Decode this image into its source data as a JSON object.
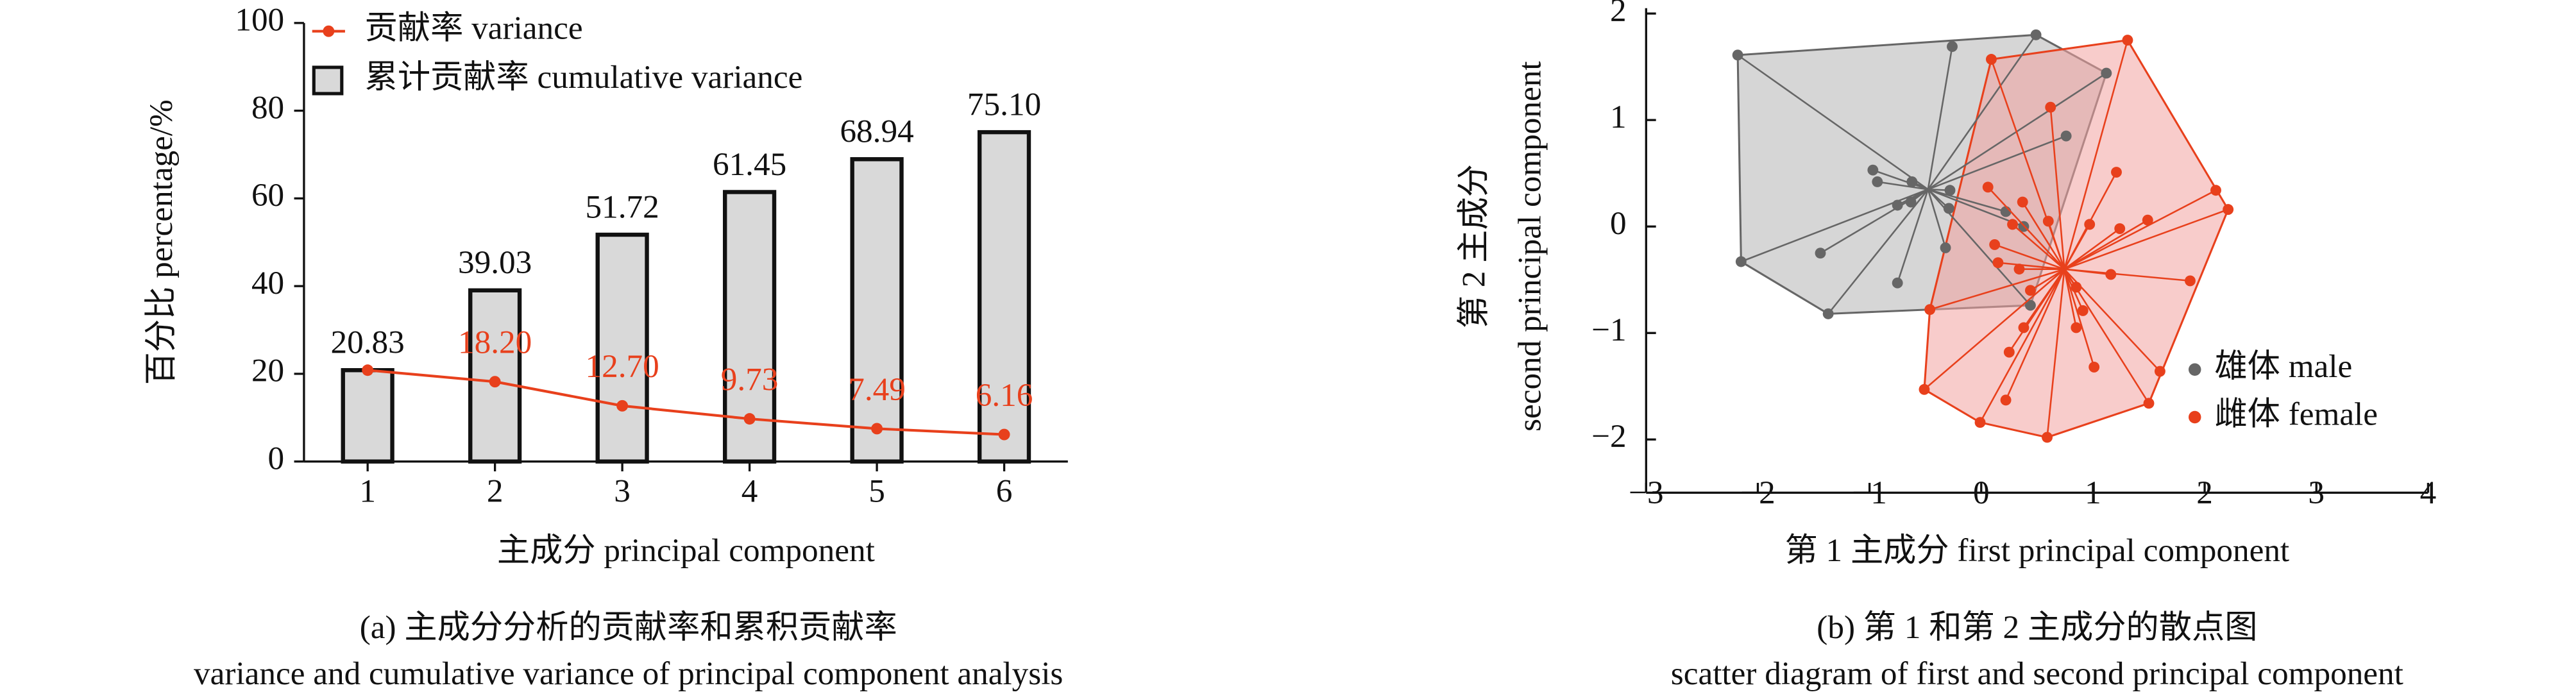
{
  "chart_data": [
    {
      "type": "bar",
      "title": "(a) 主成分分析的贡献率和累积贡献率",
      "subtitle": "variance and cumulative variance of principal component analysis",
      "x_label": "主成分 principal component",
      "y_label": "百分比 percentage/%",
      "categories": [
        "1",
        "2",
        "3",
        "4",
        "5",
        "6"
      ],
      "series": [
        {
          "name": "贡献率 variance",
          "type": "line",
          "color": "#e8401c",
          "values": [
            20.83,
            18.2,
            12.7,
            9.73,
            7.49,
            6.16
          ],
          "value_labels": [
            "20.83",
            "18.20",
            "12.70",
            "9.73",
            "7.49",
            "6.16"
          ]
        },
        {
          "name": "累计贡献率 cumulative variance",
          "type": "bar",
          "color": "#d9d9d9",
          "values": [
            20.83,
            39.03,
            51.72,
            61.45,
            68.94,
            75.1
          ],
          "value_labels": [
            "20.83",
            "39.03",
            "51.72",
            "61.45",
            "68.94",
            "75.10"
          ]
        }
      ],
      "ylim": [
        0,
        100
      ],
      "yticks": [
        0,
        20,
        40,
        60,
        80,
        100
      ],
      "legend": "top-left"
    },
    {
      "type": "scatter",
      "title": "(b) 第 1 和第 2 主成分的散点图",
      "subtitle": "scatter diagram of first and second principal component",
      "x_label": "第 1 主成分 first principal component",
      "y_label": [
        "第 2 主成分",
        "second principal component"
      ],
      "series": [
        {
          "name": "雄体 male",
          "color": "#666666",
          "hull_color": "#b5b5b5",
          "x": [
            -2.18,
            -0.26,
            0.49,
            1.12,
            -0.97,
            -0.93,
            -0.62,
            -0.75,
            -0.63,
            -0.28,
            -0.29,
            -2.15,
            -1.44,
            -1.37,
            -0.75,
            -0.32,
            0.44,
            0.38,
            0.76,
            0.22
          ],
          "y": [
            1.61,
            1.69,
            1.8,
            1.44,
            0.53,
            0.42,
            0.42,
            0.2,
            0.23,
            0.34,
            0.17,
            -0.33,
            -0.25,
            -0.82,
            -0.53,
            -0.2,
            -0.74,
            0.0,
            0.85,
            0.14
          ]
        },
        {
          "name": "雌体 female",
          "color": "#e8401c",
          "hull_color": "#f3a3a0",
          "x": [
            0.09,
            1.31,
            2.1,
            2.21,
            0.62,
            1.21,
            0.06,
            0.37,
            0.28,
            0.12,
            0.6,
            0.97,
            1.24,
            1.49,
            1.16,
            1.87,
            0.15,
            0.34,
            0.85,
            0.91,
            0.85,
            1.01,
            -0.46,
            0.38,
            0.25,
            0.22,
            -0.51,
            -0.01,
            0.59,
            1.5,
            1.6,
            0.44
          ],
          "y": [
            1.57,
            1.75,
            0.34,
            0.16,
            1.12,
            0.51,
            0.37,
            0.23,
            0.02,
            -0.17,
            0.05,
            0.02,
            -0.02,
            0.06,
            -0.45,
            -0.51,
            -0.34,
            -0.4,
            -0.57,
            -0.79,
            -0.95,
            -1.32,
            -0.78,
            -0.95,
            -1.18,
            -1.63,
            -1.53,
            -1.84,
            -1.98,
            -1.66,
            -1.36,
            -0.6
          ]
        }
      ],
      "xlim": [
        -3,
        4
      ],
      "xticks": [
        {
          "value": -3,
          "label": "−3"
        },
        {
          "value": -2,
          "label": "−2"
        },
        {
          "value": -1,
          "label": "−1"
        },
        0,
        1,
        2,
        3,
        4
      ],
      "ylim": [
        -2.5,
        2.05
      ],
      "yticks": [
        {
          "value": -2,
          "label": "−2"
        },
        {
          "value": -1,
          "label": "−1"
        },
        0,
        1,
        2
      ],
      "hull": true,
      "legend": "lower-right"
    }
  ]
}
